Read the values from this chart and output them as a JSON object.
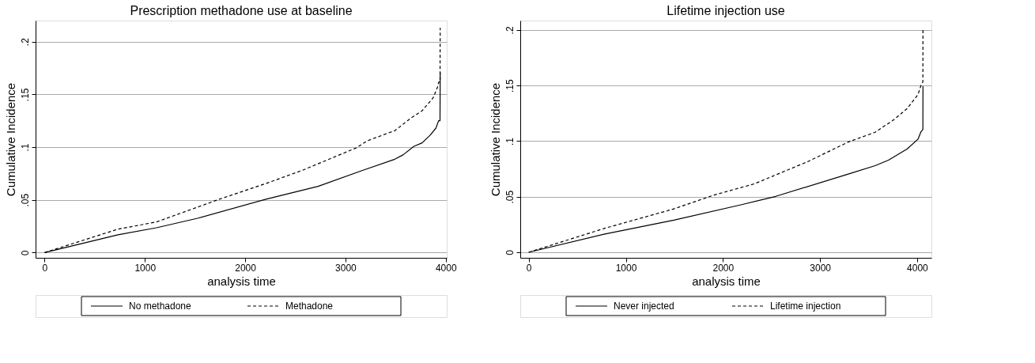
{
  "chart_data": [
    {
      "type": "line",
      "title": "Prescription methadone use at baseline",
      "xlabel": "analysis time",
      "ylabel": "Cumulative Incidence",
      "series": [
        {
          "name": "No methadone",
          "color": "#000000",
          "line_style": "solid",
          "x": [
            0,
            732,
            1115,
            1525,
            2208,
            2727,
            3164,
            3492,
            3574,
            3683,
            3765,
            3847,
            3902,
            3929,
            3943,
            3945
          ],
          "values": [
            0,
            0.0168,
            0.0235,
            0.0325,
            0.0506,
            0.0628,
            0.0777,
            0.0885,
            0.0926,
            0.1007,
            0.104,
            0.1115,
            0.118,
            0.125,
            0.125,
            0.171
          ]
        },
        {
          "name": "Methadone",
          "color": "#000000",
          "line_style": "dashed",
          "x": [
            0,
            732,
            1115,
            1743,
            2208,
            2563,
            3109,
            3218,
            3492,
            3656,
            3765,
            3874,
            3921,
            3929,
            3943,
            3945
          ],
          "values": [
            0,
            0.0222,
            0.029,
            0.0506,
            0.0655,
            0.0777,
            0.0993,
            0.106,
            0.1156,
            0.1277,
            0.1345,
            0.1467,
            0.1575,
            0.1616,
            0.1616,
            0.213
          ]
        }
      ],
      "xlim": [
        -90,
        4010
      ],
      "ylim": [
        -0.005,
        0.22
      ],
      "xticks": [
        0,
        1000,
        2000,
        3000,
        4000
      ],
      "yticks": [
        0,
        {
          "value": 0.05,
          "label": ".05"
        },
        {
          "value": 0.1,
          "label": ".1"
        },
        {
          "value": 0.15,
          "label": ".15"
        },
        {
          "value": 0.2,
          "label": ".2"
        }
      ],
      "grid": "y",
      "legend": "bottom"
    },
    {
      "type": "line",
      "title": "Lifetime injection use",
      "xlabel": "analysis time",
      "ylabel": "Cumulative Incidence",
      "series": [
        {
          "name": "Never injected",
          "color": "#000000",
          "line_style": "solid",
          "x": [
            0,
            776,
            1494,
            2185,
            2544,
            3290,
            3567,
            3705,
            3898,
            4009,
            4037,
            4059,
            4060
          ],
          "values": [
            0,
            0.0163,
            0.0289,
            0.0427,
            0.0503,
            0.0704,
            0.0779,
            0.0829,
            0.093,
            0.1018,
            0.108,
            0.1106,
            0.1495
          ]
        },
        {
          "name": "Lifetime injection",
          "color": "#000000",
          "line_style": "dashed",
          "x": [
            0,
            776,
            1494,
            1909,
            2324,
            2877,
            3290,
            3567,
            3761,
            3898,
            4009,
            4042,
            4059,
            4060
          ],
          "values": [
            0,
            0.0214,
            0.039,
            0.0515,
            0.0616,
            0.0817,
            0.0992,
            0.108,
            0.1193,
            0.1294,
            0.142,
            0.1508,
            0.1533,
            0.201
          ]
        }
      ],
      "xlim": [
        -87,
        4147
      ],
      "ylim": [
        -0.005,
        0.2085
      ],
      "xticks": [
        0,
        1000,
        2000,
        3000,
        4000
      ],
      "yticks": [
        0,
        {
          "value": 0.05,
          "label": ".05"
        },
        {
          "value": 0.1,
          "label": ".1"
        },
        {
          "value": 0.15,
          "label": ".15"
        },
        {
          "value": 0.2,
          "label": ".2"
        }
      ],
      "grid": "y",
      "legend": "bottom"
    }
  ]
}
